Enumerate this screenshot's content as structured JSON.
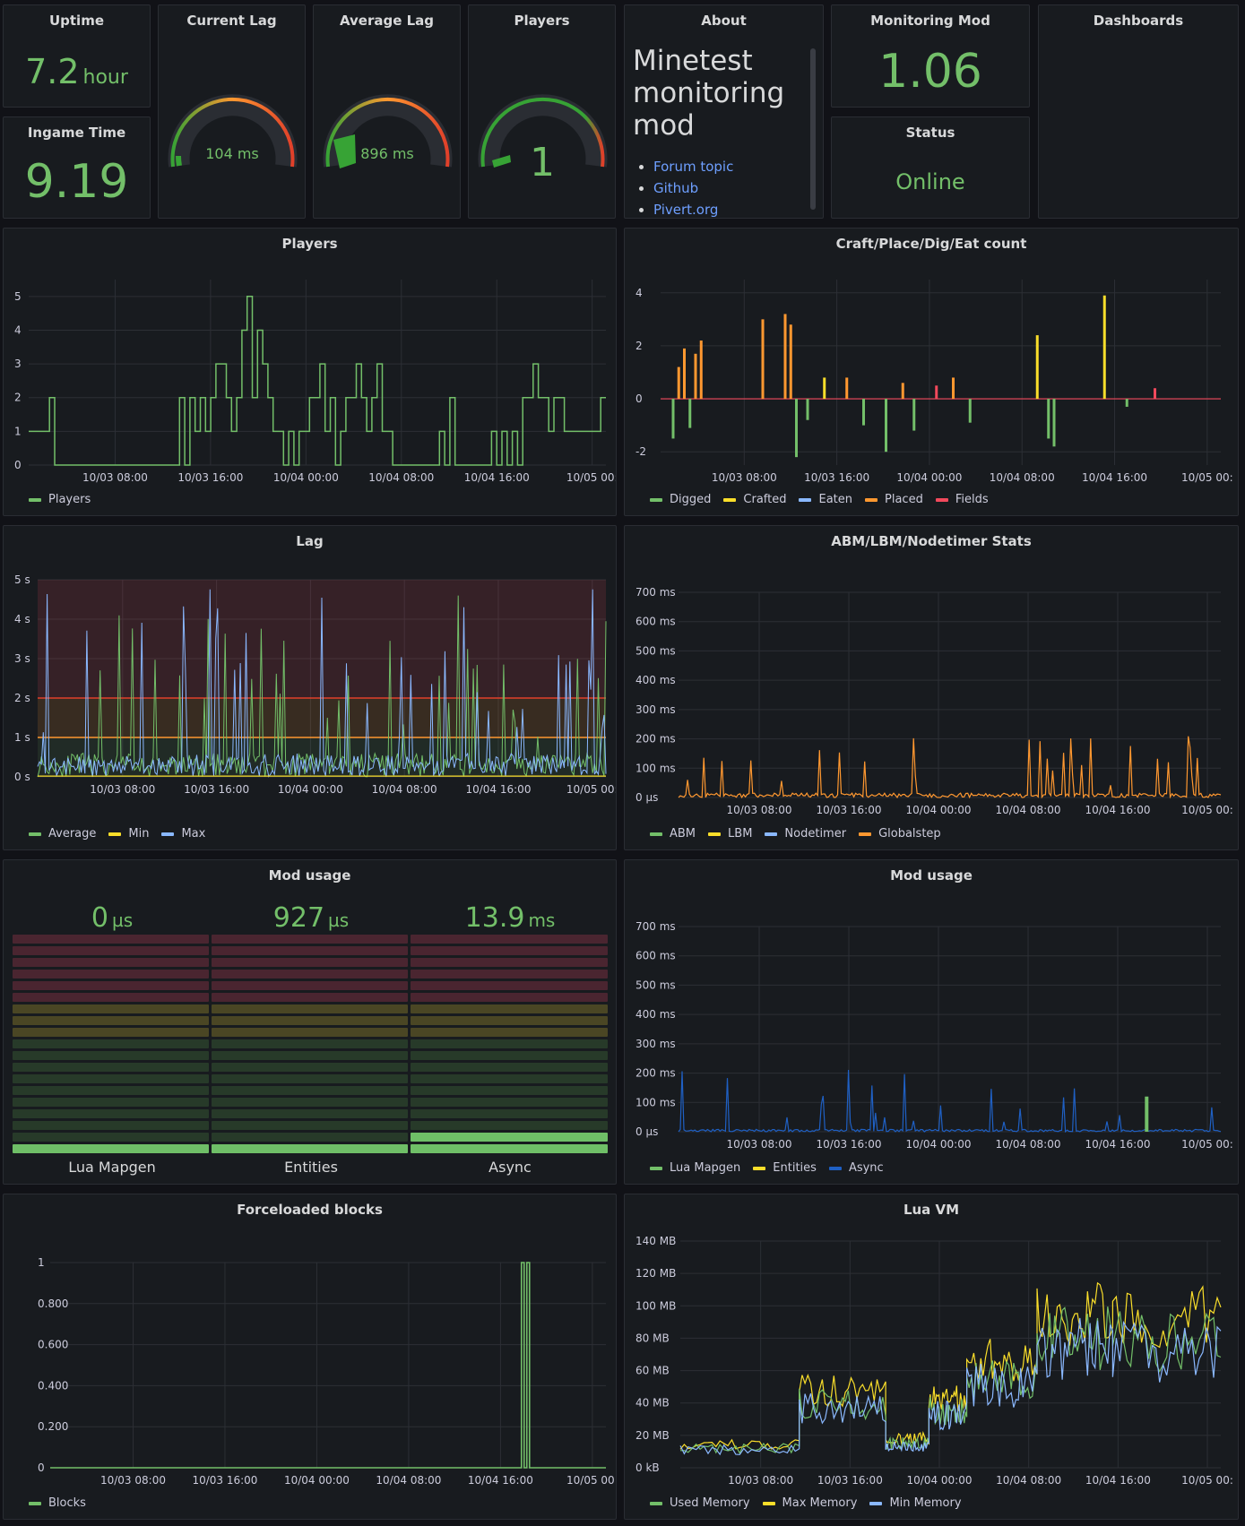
{
  "panels": {
    "uptime": {
      "title": "Uptime",
      "value": "7.2",
      "unit": "hour"
    },
    "ingame": {
      "title": "Ingame Time",
      "value": "9.19"
    },
    "current_lag": {
      "title": "Current Lag",
      "value": "104 ms",
      "fraction": 0.1
    },
    "average_lag": {
      "title": "Average Lag",
      "value": "896 ms",
      "fraction": 0.14
    },
    "players_gauge": {
      "title": "Players",
      "value": "1",
      "fraction": 0.03
    },
    "about": {
      "title": "About",
      "heading": "Minetest monitoring mod",
      "links": [
        "Forum topic",
        "Github",
        "Pivert.org"
      ]
    },
    "monitoring_mod": {
      "title": "Monitoring Mod",
      "value": "1.06"
    },
    "status": {
      "title": "Status",
      "value": "Online"
    },
    "dashboards": {
      "title": "Dashboards"
    },
    "players_chart": {
      "title": "Players"
    },
    "craft_chart": {
      "title": "Craft/Place/Dig/Eat count"
    },
    "lag_chart": {
      "title": "Lag"
    },
    "abm_chart": {
      "title": "ABM/LBM/Nodetimer Stats"
    },
    "mod_usage_bars": {
      "title": "Mod usage"
    },
    "mod_usage_chart": {
      "title": "Mod usage"
    },
    "forceloaded_chart": {
      "title": "Forceloaded blocks"
    },
    "luavm_chart": {
      "title": "Lua VM"
    }
  },
  "colors": {
    "green": "#73bf69",
    "yellow": "#fade2a",
    "blue": "#8ab8ff",
    "orange": "#ff9830",
    "red": "#f2495c",
    "darkblue": "#1f60c4"
  },
  "chart_data": [
    {
      "type": "line",
      "title": "Players",
      "x_ticks": [
        "10/03 08:00",
        "10/03 16:00",
        "10/04 00:00",
        "10/04 08:00",
        "10/04 16:00",
        "10/05 00:"
      ],
      "y_ticks": [
        "0",
        "1",
        "2",
        "3",
        "4",
        "5"
      ],
      "ylim": [
        0,
        5.5
      ],
      "series": [
        {
          "name": "Players",
          "color": "#73bf69",
          "values": [
            1,
            1,
            1,
            1,
            2,
            0,
            0,
            0,
            0,
            0,
            0,
            0,
            0,
            0,
            0,
            0,
            0,
            0,
            0,
            0,
            0,
            0,
            0,
            0,
            0,
            0,
            0,
            0,
            0,
            2,
            0,
            2,
            1,
            2,
            1,
            2,
            3,
            3,
            2,
            1,
            2,
            4,
            5,
            2,
            4,
            3,
            2,
            1,
            1,
            0,
            1,
            0,
            1,
            1,
            2,
            2,
            3,
            1,
            2,
            0,
            1,
            2,
            2,
            3,
            2,
            1,
            2,
            3,
            1,
            1,
            0,
            0,
            0,
            0,
            0,
            0,
            0,
            0,
            0,
            1,
            0,
            2,
            0,
            0,
            0,
            0,
            0,
            0,
            0,
            1,
            0,
            1,
            0,
            1,
            0,
            2,
            2,
            3,
            2,
            2,
            1,
            2,
            2,
            1,
            1,
            1,
            1,
            1,
            1,
            1,
            2,
            2
          ]
        }
      ]
    },
    {
      "type": "bar",
      "title": "Craft/Place/Dig/Eat count",
      "x_ticks": [
        "10/03 08:00",
        "10/03 16:00",
        "10/04 00:00",
        "10/04 08:00",
        "10/04 16:00",
        "10/05 00:"
      ],
      "y_ticks": [
        "-2",
        "0",
        "2",
        "4"
      ],
      "ylim": [
        -2.5,
        4.5
      ],
      "series": [
        {
          "name": "Digged",
          "color": "#73bf69"
        },
        {
          "name": "Crafted",
          "color": "#fade2a"
        },
        {
          "name": "Eaten",
          "color": "#8ab8ff"
        },
        {
          "name": "Placed",
          "color": "#ff9830"
        },
        {
          "name": "Fields",
          "color": "#f2495c"
        }
      ]
    },
    {
      "type": "line",
      "title": "Lag",
      "x_ticks": [
        "10/03 08:00",
        "10/03 16:00",
        "10/04 00:00",
        "10/04 08:00",
        "10/04 16:00",
        "10/05 00:"
      ],
      "y_ticks": [
        "0 s",
        "1 s",
        "2 s",
        "3 s",
        "4 s",
        "5 s"
      ],
      "ylim": [
        0,
        5
      ],
      "thresholds": [
        1,
        2
      ],
      "series": [
        {
          "name": "Average",
          "color": "#73bf69"
        },
        {
          "name": "Min",
          "color": "#fade2a"
        },
        {
          "name": "Max",
          "color": "#8ab8ff"
        }
      ]
    },
    {
      "type": "line",
      "title": "ABM/LBM/Nodetimer Stats",
      "x_ticks": [
        "10/03 08:00",
        "10/03 16:00",
        "10/04 00:00",
        "10/04 08:00",
        "10/04 16:00",
        "10/05 00:"
      ],
      "y_ticks": [
        "0 µs",
        "100 ms",
        "200 ms",
        "300 ms",
        "400 ms",
        "500 ms",
        "600 ms",
        "700 ms"
      ],
      "ylim": [
        0,
        700
      ],
      "series": [
        {
          "name": "ABM",
          "color": "#73bf69"
        },
        {
          "name": "LBM",
          "color": "#fade2a"
        },
        {
          "name": "Nodetimer",
          "color": "#8ab8ff"
        },
        {
          "name": "Globalstep",
          "color": "#ff9830"
        }
      ]
    },
    {
      "type": "bar",
      "title": "Mod usage",
      "categories": [
        "Lua Mapgen",
        "Entities",
        "Async"
      ],
      "values_text": [
        [
          "0",
          "µs"
        ],
        [
          "927",
          "µs"
        ],
        [
          "13.9",
          "ms"
        ]
      ],
      "levels": [
        1,
        1,
        2
      ]
    },
    {
      "type": "line",
      "title": "Mod usage",
      "x_ticks": [
        "10/03 08:00",
        "10/03 16:00",
        "10/04 00:00",
        "10/04 08:00",
        "10/04 16:00",
        "10/05 00:"
      ],
      "y_ticks": [
        "0 µs",
        "100 ms",
        "200 ms",
        "300 ms",
        "400 ms",
        "500 ms",
        "600 ms",
        "700 ms"
      ],
      "ylim": [
        0,
        700
      ],
      "series": [
        {
          "name": "Lua Mapgen",
          "color": "#73bf69"
        },
        {
          "name": "Entities",
          "color": "#fade2a"
        },
        {
          "name": "Async",
          "color": "#1f60c4"
        }
      ]
    },
    {
      "type": "line",
      "title": "Forceloaded blocks",
      "x_ticks": [
        "10/03 08:00",
        "10/03 16:00",
        "10/04 00:00",
        "10/04 08:00",
        "10/04 16:00",
        "10/05 00:"
      ],
      "y_ticks": [
        "0",
        "0.200",
        "0.400",
        "0.600",
        "0.800",
        "1"
      ],
      "ylim": [
        0,
        1
      ],
      "series": [
        {
          "name": "Blocks",
          "color": "#73bf69"
        }
      ]
    },
    {
      "type": "area",
      "title": "Lua VM",
      "x_ticks": [
        "10/03 08:00",
        "10/03 16:00",
        "10/04 00:00",
        "10/04 08:00",
        "10/04 16:00",
        "10/05 00:"
      ],
      "y_ticks": [
        "0 kB",
        "20 MB",
        "40 MB",
        "60 MB",
        "80 MB",
        "100 MB",
        "120 MB",
        "140 MB"
      ],
      "ylim": [
        0,
        140
      ],
      "series": [
        {
          "name": "Used Memory",
          "color": "#73bf69"
        },
        {
          "name": "Max Memory",
          "color": "#fade2a"
        },
        {
          "name": "Min Memory",
          "color": "#8ab8ff"
        }
      ]
    }
  ]
}
